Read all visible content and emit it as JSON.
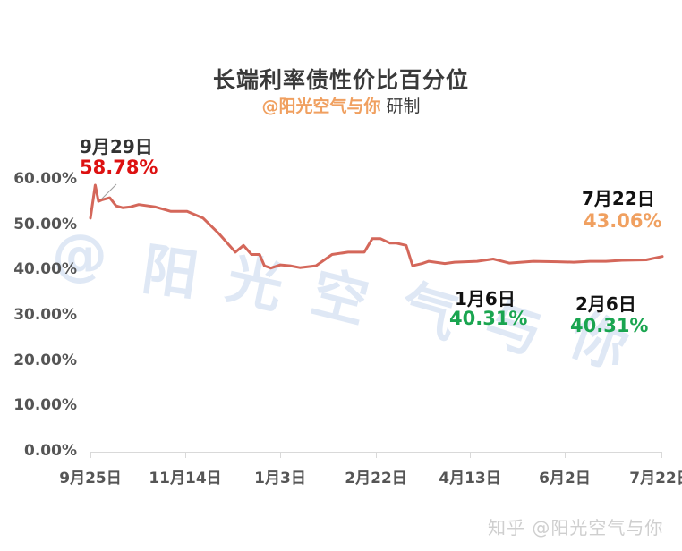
{
  "chart_data": {
    "type": "line",
    "title": "长端利率债性价比百分位",
    "subtitle": {
      "author": "@阳光空气与你",
      "suffix": "研制"
    },
    "xlabel": "",
    "ylabel": "",
    "ylim": [
      0,
      60
    ],
    "yticks": [
      "0.00%",
      "10.00%",
      "20.00%",
      "30.00%",
      "40.00%",
      "50.00%",
      "60.00%"
    ],
    "xticks": [
      "9月25日",
      "11月14日",
      "1月3日",
      "2月22日",
      "4月13日",
      "6月2日",
      "7月22日"
    ],
    "grid": false,
    "legend": null,
    "series": [
      {
        "name": "长端利率债性价比百分位",
        "color": "#d4675a",
        "x_index_approx": [
          0,
          3,
          5,
          7,
          12,
          16,
          20,
          25,
          30,
          40,
          50,
          60,
          70,
          80,
          90,
          95,
          100,
          105,
          108,
          112,
          118,
          124,
          130,
          140,
          150,
          160,
          170,
          175,
          180,
          186,
          190,
          196,
          200,
          206,
          210,
          216,
          220,
          226,
          240,
          250,
          260,
          275,
          290,
          300,
          310,
          320,
          330,
          345,
          355
        ],
        "values": [
          51.5,
          58.78,
          55.2,
          55.5,
          56.0,
          54.2,
          53.8,
          54.0,
          54.5,
          54.0,
          53.0,
          53.0,
          51.5,
          48.0,
          44.0,
          45.5,
          43.5,
          43.5,
          41.0,
          40.5,
          41.2,
          41.0,
          40.6,
          41.0,
          43.5,
          44.0,
          44.0,
          47.0,
          47.0,
          46.0,
          46.0,
          45.5,
          41.0,
          41.5,
          42.0,
          41.7,
          41.5,
          41.8,
          42.0,
          42.5,
          41.6,
          42.0,
          41.9,
          41.8,
          42.0,
          42.0,
          42.2,
          42.3,
          43.06
        ]
      }
    ],
    "annotations": [
      {
        "date": "9月29日",
        "value": "58.78%",
        "color": "#dd1111"
      },
      {
        "date": "1月6日",
        "value": "40.31%",
        "color": "#1aa550"
      },
      {
        "date": "2月6日",
        "value": "40.31%",
        "color": "#1aa550"
      },
      {
        "date": "7月22日",
        "value": "43.06%",
        "color": "#f0a060"
      }
    ],
    "watermark": "@阳光空气与你"
  },
  "footer": {
    "text": "知乎 @阳光空气与你"
  }
}
